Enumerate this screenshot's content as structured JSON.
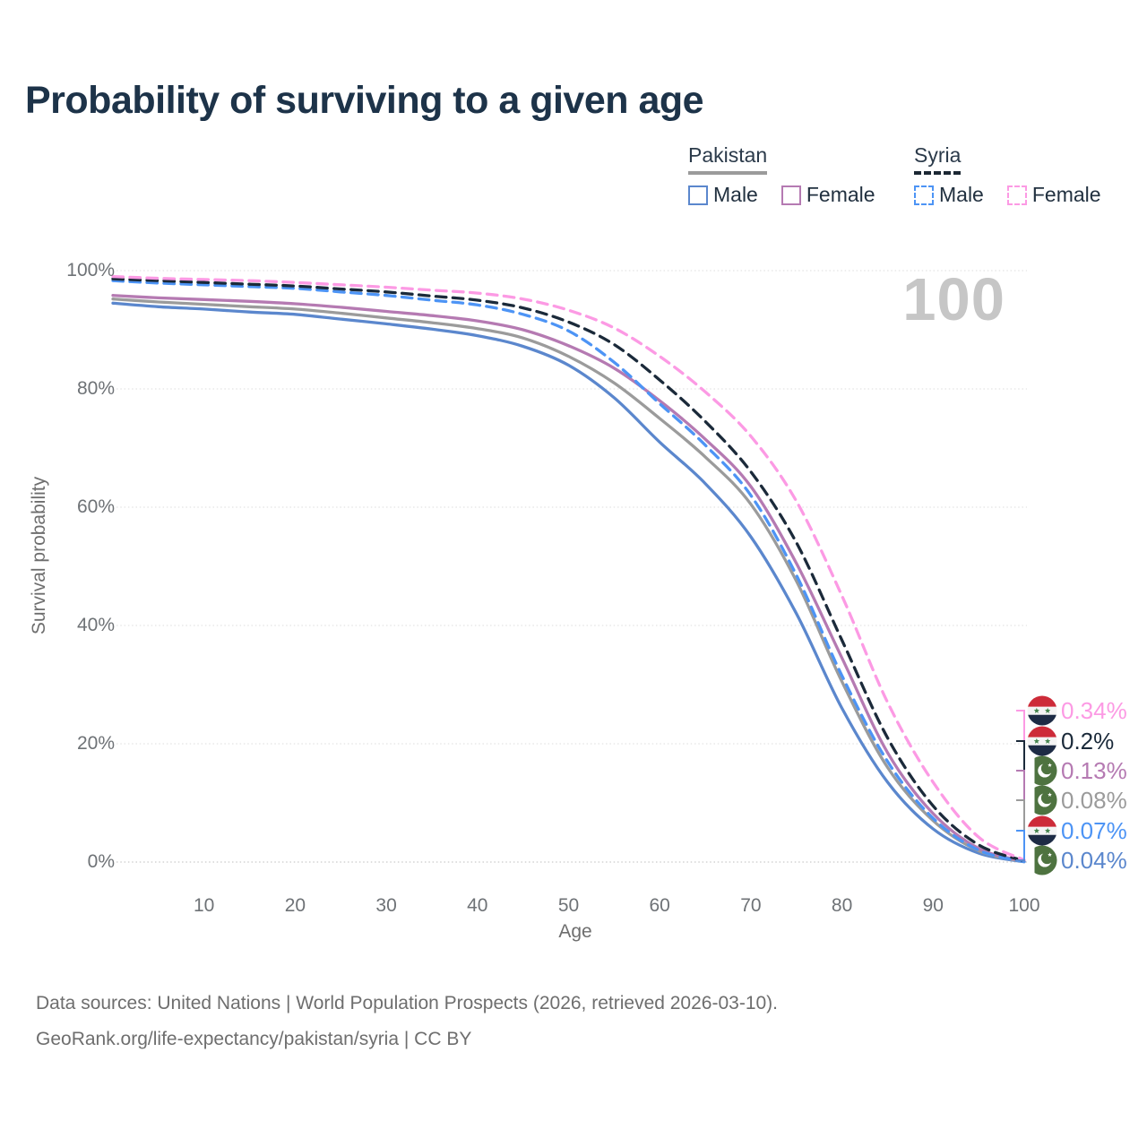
{
  "title": "Probability of surviving to a given age",
  "watermark": "100",
  "legend": {
    "groups": [
      {
        "country": "Pakistan",
        "underline_style": "solid",
        "underline_color": "#9b9b9b",
        "items": [
          {
            "label": "Male",
            "color": "#5b87cd",
            "dashed": false
          },
          {
            "label": "Female",
            "color": "#b57ab2",
            "dashed": false
          }
        ]
      },
      {
        "country": "Syria",
        "underline_style": "dashed",
        "underline_color": "#1b2733",
        "items": [
          {
            "label": "Male",
            "color": "#4d94f5",
            "dashed": true
          },
          {
            "label": "Female",
            "color": "#fc9ae4",
            "dashed": true
          }
        ]
      }
    ]
  },
  "axes": {
    "x": {
      "label": "Age",
      "ticks": [
        10,
        20,
        30,
        40,
        50,
        60,
        70,
        80,
        90,
        100
      ],
      "min": 0,
      "max": 100
    },
    "y": {
      "label": "Survival probability",
      "ticks": [
        "100%",
        "80%",
        "60%",
        "40%",
        "20%",
        "0%"
      ],
      "tick_values": [
        100,
        80,
        60,
        40,
        20,
        0
      ]
    }
  },
  "chart_data": {
    "type": "line",
    "title": "Probability of surviving to a given age",
    "xlabel": "Age",
    "ylabel": "Survival probability",
    "xlim": [
      0,
      100
    ],
    "ylim": [
      0,
      100
    ],
    "grid": true,
    "legend_position": "top-right",
    "x": [
      0,
      5,
      10,
      15,
      20,
      25,
      30,
      35,
      40,
      45,
      50,
      55,
      60,
      65,
      70,
      75,
      80,
      85,
      90,
      95,
      100
    ],
    "series": [
      {
        "id": "pakistan-male",
        "name": "Pakistan Male",
        "country": "Pakistan",
        "sex": "Male",
        "flag": "pakistan",
        "color": "#5b87cd",
        "dashed": false,
        "end_label": "0.04%",
        "values": [
          94.5,
          93.9,
          93.5,
          93.0,
          92.6,
          91.8,
          91.0,
          90.1,
          89.0,
          87.2,
          84.0,
          78.5,
          71.0,
          64.0,
          55.0,
          42.0,
          26.0,
          13.5,
          5.6,
          1.5,
          0.04
        ]
      },
      {
        "id": "pakistan-overall",
        "name": "Pakistan",
        "country": "Pakistan",
        "sex": "Both",
        "flag": "pakistan",
        "color": "#9b9b9b",
        "dashed": false,
        "end_label": "0.08%",
        "values": [
          95.2,
          94.7,
          94.3,
          93.9,
          93.5,
          92.8,
          92.0,
          91.2,
          90.2,
          88.6,
          85.5,
          81.0,
          75.0,
          68.5,
          60.5,
          47.5,
          30.5,
          16.0,
          7.0,
          1.9,
          0.08
        ]
      },
      {
        "id": "pakistan-female",
        "name": "Pakistan Female",
        "country": "Pakistan",
        "sex": "Female",
        "flag": "pakistan",
        "color": "#b57ab2",
        "dashed": false,
        "end_label": "0.13%",
        "values": [
          95.8,
          95.4,
          95.1,
          94.8,
          94.4,
          93.8,
          93.1,
          92.4,
          91.5,
          90.0,
          87.3,
          83.5,
          78.0,
          71.5,
          63.5,
          50.5,
          34.5,
          18.5,
          8.2,
          2.3,
          0.13
        ]
      },
      {
        "id": "syria-male",
        "name": "Syria Male",
        "country": "Syria",
        "sex": "Male",
        "flag": "syria",
        "color": "#4d94f5",
        "dashed": true,
        "end_label": "0.07%",
        "values": [
          98.3,
          97.9,
          97.6,
          97.3,
          97.0,
          96.4,
          95.8,
          95.0,
          94.2,
          92.6,
          89.8,
          84.5,
          77.5,
          70.5,
          62.0,
          48.5,
          31.5,
          17.0,
          7.4,
          2.0,
          0.07
        ]
      },
      {
        "id": "syria-overall",
        "name": "Syria",
        "country": "Syria",
        "sex": "Both",
        "flag": "syria",
        "color": "#1b2a3a",
        "dashed": true,
        "end_label": "0.2%",
        "values": [
          98.6,
          98.3,
          98.0,
          97.7,
          97.4,
          96.9,
          96.4,
          95.7,
          95.0,
          93.7,
          91.3,
          87.5,
          81.5,
          74.5,
          66.0,
          54.0,
          37.5,
          21.0,
          9.5,
          2.9,
          0.2
        ]
      },
      {
        "id": "syria-female",
        "name": "Syria Female",
        "country": "Syria",
        "sex": "Female",
        "flag": "syria",
        "color": "#fc9ae4",
        "dashed": true,
        "end_label": "0.34%",
        "values": [
          99.0,
          98.7,
          98.5,
          98.3,
          98.0,
          97.6,
          97.2,
          96.7,
          96.2,
          95.2,
          93.3,
          90.3,
          85.5,
          79.5,
          72.0,
          61.0,
          45.0,
          27.0,
          13.5,
          4.2,
          0.34
        ]
      }
    ],
    "end_label_order": [
      "0.34%",
      "0.2%",
      "0.13%",
      "0.08%",
      "0.07%",
      "0.04%"
    ]
  },
  "flag_colors": {
    "syria_red": "#cd2b39",
    "syria_white": "#f4f4f4",
    "syria_navy": "#1d2b45",
    "syria_star_green": "#45854d",
    "pakistan_green": "#4e7340",
    "pakistan_white": "#ffffff"
  },
  "footer": {
    "line1": "Data sources: United Nations | World Population Prospects (2026, retrieved 2026-03-10).",
    "line2": "GeoRank.org/life-expectancy/pakistan/syria | CC BY"
  }
}
